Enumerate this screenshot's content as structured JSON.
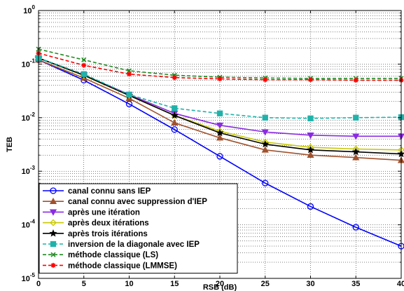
{
  "chart_data": {
    "type": "line",
    "xlabel": "RSB (dB)",
    "ylabel": "TEB",
    "xlim": [
      0,
      40
    ],
    "ylim": [
      1e-05,
      1
    ],
    "yscale": "log",
    "grid": true,
    "x_ticks": [
      "0",
      "5",
      "10",
      "15",
      "20",
      "25",
      "30",
      "35",
      "40"
    ],
    "y_ticks": [
      {
        "base": "10",
        "exp": "0"
      },
      {
        "base": "10",
        "exp": "-1"
      },
      {
        "base": "10",
        "exp": "-2"
      },
      {
        "base": "10",
        "exp": "-3"
      },
      {
        "base": "10",
        "exp": "-4"
      },
      {
        "base": "10",
        "exp": "-5"
      }
    ],
    "legend_position": "bottom-left",
    "x": [
      0,
      5,
      10,
      15,
      20,
      25,
      30,
      35,
      40
    ],
    "series": [
      {
        "name": "canal connu sans IEP",
        "color": "#0000ff",
        "dash": "solid",
        "marker": "circle",
        "values": [
          0.12,
          0.05,
          0.018,
          0.006,
          0.0019,
          0.0006,
          0.00022,
          9e-05,
          4e-05
        ]
      },
      {
        "name": "canal connu avec suppression d'IEP",
        "color": "#a0522d",
        "dash": "solid",
        "marker": "triangle-up",
        "values": [
          0.12,
          0.055,
          0.023,
          0.008,
          0.0042,
          0.0025,
          0.002,
          0.0018,
          0.0016
        ]
      },
      {
        "name": "après une itération",
        "color": "#8a2be2",
        "dash": "solid",
        "marker": "triangle-down",
        "values": [
          0.13,
          0.062,
          0.027,
          0.012,
          0.0072,
          0.0054,
          0.0047,
          0.0045,
          0.0045
        ]
      },
      {
        "name": "après deux itérations",
        "color": "#c8c800",
        "dash": "solid",
        "marker": "diamond",
        "values": [
          0.13,
          0.061,
          0.026,
          0.011,
          0.0056,
          0.0035,
          0.0028,
          0.0026,
          0.0025
        ]
      },
      {
        "name": "après trois itérations",
        "color": "#000000",
        "dash": "solid",
        "marker": "star",
        "values": [
          0.13,
          0.062,
          0.026,
          0.011,
          0.0052,
          0.0032,
          0.0025,
          0.0023,
          0.0021
        ]
      },
      {
        "name": "inversion de la diagonale avec IEP",
        "color": "#20b2aa",
        "dash": "dashed",
        "marker": "square",
        "values": [
          0.13,
          0.065,
          0.027,
          0.015,
          0.012,
          0.01,
          0.0097,
          0.01,
          0.0102
        ]
      },
      {
        "name": "méthode classique (LS)",
        "color": "#228b22",
        "dash": "dashed",
        "marker": "x",
        "values": [
          0.19,
          0.12,
          0.075,
          0.062,
          0.057,
          0.055,
          0.054,
          0.054,
          0.054
        ]
      },
      {
        "name": "méthode classique (LMMSE)",
        "color": "#ff0000",
        "dash": "dashed",
        "marker": "asterisk",
        "values": [
          0.16,
          0.095,
          0.065,
          0.056,
          0.053,
          0.051,
          0.051,
          0.05,
          0.05
        ]
      }
    ]
  }
}
